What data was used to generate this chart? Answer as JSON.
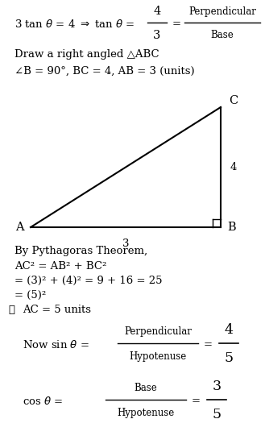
{
  "bg_color": "#ffffff",
  "text_color": "#000000",
  "fig_width": 3.29,
  "fig_height": 5.51,
  "dpi": 100,
  "line1_text": "3 tan θ = 4 ⇒ tan θ =",
  "frac1_num": "4",
  "frac1_den": "3",
  "frac2_num": "Perpendicular",
  "frac2_den": "Base",
  "line2": "Draw a right angled △ABC",
  "line3": "∠B = 90°, BC = 4, AB = 3 (units)",
  "tri_A_label": "A",
  "tri_B_label": "B",
  "tri_C_label": "C",
  "tri_AB_label": "3",
  "tri_BC_label": "4",
  "pyth_line1": "By Pythagoras Theorem,",
  "pyth_line2": "AC² = AB² + BC²",
  "pyth_line3": "= (3)² + (4)² = 9 + 16 = 25",
  "pyth_line4": "= (5)²",
  "pyth_line5": "∴  AC = 5 units",
  "sin_prefix": "Now sin θ =",
  "sin_frac_num": "Perpendicular",
  "sin_frac_den": "Hypotenuse",
  "sin_result_num": "4",
  "sin_result_den": "5",
  "cos_prefix": "cos θ =",
  "cos_frac_num": "Base",
  "cos_frac_den": "Hypotenuse",
  "cos_result_num": "3",
  "cos_result_den": "5"
}
